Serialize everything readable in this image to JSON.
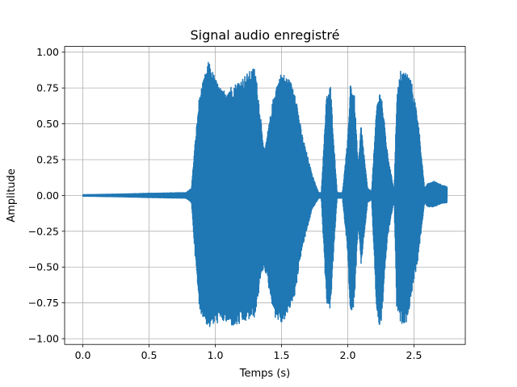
{
  "chart_data": {
    "type": "line",
    "title": "Signal audio enregistré",
    "xlabel": "Temps (s)",
    "ylabel": "Amplitude",
    "xlim": [
      -0.1375,
      2.8875
    ],
    "ylim": [
      -1.04,
      1.04
    ],
    "grid": true,
    "x_ticks": [
      0.0,
      0.5,
      1.0,
      1.5,
      2.0,
      2.5
    ],
    "x_tick_labels": [
      "0.0",
      "0.5",
      "1.0",
      "1.5",
      "2.0",
      "2.5"
    ],
    "y_ticks": [
      -1.0,
      -0.75,
      -0.5,
      -0.25,
      0.0,
      0.25,
      0.5,
      0.75,
      1.0
    ],
    "y_tick_labels": [
      "−1.00",
      "−0.75",
      "−0.50",
      "−0.25",
      "0.00",
      "0.25",
      "0.50",
      "0.75",
      "1.00"
    ],
    "line_color": "#1f77b4",
    "series": [
      {
        "envelope": {
          "t": [
            0.0,
            0.3,
            0.5,
            0.78,
            0.82,
            0.85,
            0.88,
            0.95,
            1.0,
            1.05,
            1.15,
            1.3,
            1.35,
            1.37,
            1.45,
            1.5,
            1.55,
            1.6,
            1.65,
            1.73,
            1.78,
            1.8,
            1.84,
            1.87,
            1.9,
            1.92,
            1.96,
            2.0,
            2.02,
            2.05,
            2.08,
            2.1,
            2.15,
            2.18,
            2.22,
            2.25,
            2.3,
            2.35,
            2.37,
            2.4,
            2.45,
            2.48,
            2.53,
            2.58,
            2.6,
            2.65,
            2.7,
            2.75
          ],
          "upper": [
            0.005,
            0.01,
            0.015,
            0.02,
            0.05,
            0.4,
            0.7,
            0.94,
            0.82,
            0.73,
            0.78,
            0.9,
            0.5,
            0.3,
            0.75,
            0.86,
            0.82,
            0.75,
            0.45,
            0.15,
            0.02,
            0.02,
            0.7,
            0.77,
            0.3,
            0.02,
            0.02,
            0.4,
            0.8,
            0.7,
            0.2,
            0.5,
            0.05,
            0.03,
            0.65,
            0.75,
            0.3,
            0.03,
            0.7,
            0.88,
            0.86,
            0.8,
            0.55,
            0.05,
            0.08,
            0.1,
            0.08,
            0.06
          ],
          "lower": [
            -0.005,
            -0.01,
            -0.015,
            -0.02,
            -0.05,
            -0.45,
            -0.8,
            -0.93,
            -0.9,
            -0.88,
            -0.92,
            -0.85,
            -0.55,
            -0.5,
            -0.85,
            -0.9,
            -0.83,
            -0.7,
            -0.4,
            -0.1,
            -0.02,
            -0.02,
            -0.75,
            -0.8,
            -0.3,
            -0.02,
            -0.02,
            -0.4,
            -0.88,
            -0.75,
            -0.2,
            -0.5,
            -0.05,
            -0.03,
            -0.85,
            -0.95,
            -0.3,
            -0.03,
            -0.8,
            -0.9,
            -0.88,
            -0.7,
            -0.45,
            -0.05,
            -0.08,
            -0.08,
            -0.06,
            -0.05
          ]
        }
      }
    ]
  }
}
